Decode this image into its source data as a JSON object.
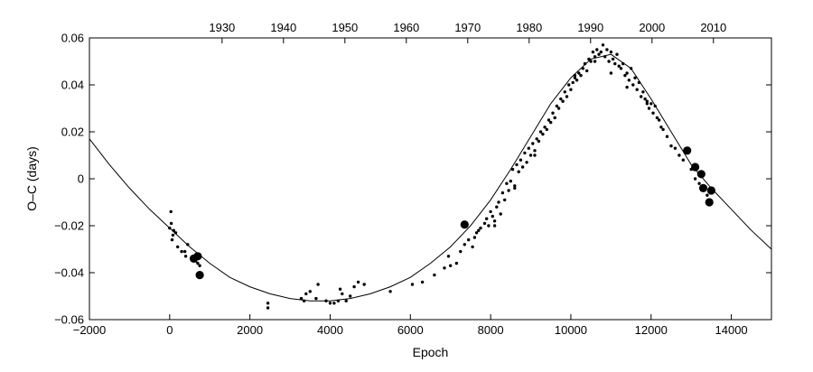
{
  "chart_data": {
    "type": "scatter",
    "title": "",
    "xlabel": "Epoch",
    "ylabel": "O–C (days)",
    "xlim": [
      -2000,
      15000
    ],
    "ylim": [
      -0.06,
      0.06
    ],
    "x_ticks": [
      -2000,
      0,
      2000,
      4000,
      6000,
      8000,
      10000,
      12000,
      14000
    ],
    "x_tick_labels": [
      "−2000",
      "0",
      "2000",
      "4000",
      "6000",
      "8000",
      "10000",
      "12000",
      "14000"
    ],
    "y_ticks": [
      -0.06,
      -0.04,
      -0.02,
      0,
      0.02,
      0.04,
      0.06
    ],
    "y_tick_labels": [
      "−0.06",
      "−0.04",
      "−0.02",
      "0",
      "0.02",
      "0.04",
      "0.06"
    ],
    "top_axis": {
      "label": "",
      "ticks": [
        1930,
        1940,
        1950,
        1960,
        1970,
        1980,
        1990,
        2000,
        2010
      ],
      "tick_labels": [
        "1930",
        "1940",
        "1950",
        "1960",
        "1970",
        "1980",
        "1990",
        "2000",
        "2010"
      ],
      "epoch_at": [
        1306,
        2837,
        4368,
        5899,
        7430,
        8961,
        10492,
        12023,
        13554
      ]
    },
    "grid": false,
    "legend": "none",
    "colors": {
      "points": "#000000",
      "curve": "#000000",
      "axes": "#000000"
    },
    "series": [
      {
        "kind": "points-small",
        "x": [
          0,
          30,
          40,
          60,
          80,
          100,
          150,
          200,
          300,
          380,
          400,
          450,
          540,
          600,
          650,
          700,
          750,
          2450,
          2450,
          3280,
          3350,
          3400,
          3500,
          3650,
          3700,
          3900,
          4000,
          4100,
          4200,
          4250,
          4300,
          4400,
          4500,
          4600,
          4700,
          4850,
          5500,
          6050,
          6300,
          6600,
          6850,
          6950,
          7000,
          7150,
          7250,
          7350,
          7450,
          7600,
          7650,
          7700,
          7750,
          7850,
          7900,
          7950,
          8000,
          8050,
          8100,
          8150,
          8200,
          8250,
          8300,
          8350,
          8400,
          8450,
          8500,
          8550,
          8600,
          8650,
          8700,
          8750,
          8800,
          8850,
          8900,
          8950,
          9000,
          9050,
          9100,
          9150,
          9200,
          9250,
          9300,
          9350,
          9400,
          9450,
          9500,
          9550,
          9600,
          9650,
          9700,
          9750,
          9800,
          9850,
          9900,
          9950,
          10000,
          10050,
          10100,
          10150,
          10200,
          10250,
          10300,
          10350,
          10400,
          10450,
          10500,
          10550,
          10600,
          10650,
          10700,
          10750,
          10800,
          10850,
          10900,
          10950,
          11000,
          11050,
          11100,
          11150,
          11200,
          11250,
          11300,
          11350,
          11400,
          11450,
          11500,
          11550,
          11600,
          11650,
          11700,
          11750,
          11800,
          11850,
          11900,
          11950,
          12000,
          12050,
          12100,
          12150,
          12200,
          12250,
          12300,
          12400,
          12500,
          12600,
          12700,
          12800,
          12900,
          13000,
          13100,
          13200,
          13300,
          13400,
          13500,
          7550,
          8100,
          8600,
          9100,
          9600,
          10100,
          10600,
          11000,
          11400,
          11900
        ],
        "y": [
          -0.021,
          -0.014,
          -0.019,
          -0.026,
          -0.024,
          -0.022,
          -0.023,
          -0.029,
          -0.031,
          -0.031,
          -0.033,
          -0.028,
          -0.034,
          -0.033,
          -0.035,
          -0.036,
          -0.037,
          -0.055,
          -0.053,
          -0.051,
          -0.052,
          -0.049,
          -0.048,
          -0.051,
          -0.045,
          -0.052,
          -0.053,
          -0.053,
          -0.052,
          -0.047,
          -0.049,
          -0.052,
          -0.05,
          -0.046,
          -0.044,
          -0.045,
          -0.048,
          -0.045,
          -0.044,
          -0.041,
          -0.038,
          -0.033,
          -0.037,
          -0.036,
          -0.031,
          -0.028,
          -0.026,
          -0.025,
          -0.023,
          -0.022,
          -0.021,
          -0.019,
          -0.017,
          -0.02,
          -0.014,
          -0.016,
          -0.018,
          -0.012,
          -0.01,
          -0.015,
          -0.006,
          -0.009,
          -0.002,
          -0.005,
          -0.001,
          0.004,
          -0.003,
          0.006,
          0.003,
          0.008,
          0.005,
          0.011,
          0.007,
          0.013,
          0.01,
          0.015,
          0.012,
          0.017,
          0.016,
          0.02,
          0.019,
          0.022,
          0.021,
          0.025,
          0.024,
          0.028,
          0.026,
          0.031,
          0.03,
          0.034,
          0.033,
          0.037,
          0.035,
          0.04,
          0.038,
          0.041,
          0.043,
          0.042,
          0.045,
          0.044,
          0.047,
          0.049,
          0.046,
          0.051,
          0.05,
          0.054,
          0.052,
          0.055,
          0.053,
          0.054,
          0.057,
          0.052,
          0.055,
          0.05,
          0.054,
          0.051,
          0.049,
          0.053,
          0.048,
          0.047,
          0.049,
          0.044,
          0.045,
          0.042,
          0.047,
          0.04,
          0.043,
          0.038,
          0.041,
          0.035,
          0.037,
          0.034,
          0.033,
          0.03,
          0.032,
          0.028,
          0.031,
          0.026,
          0.025,
          0.022,
          0.021,
          0.018,
          0.014,
          0.013,
          0.01,
          0.008,
          0.012,
          0.004,
          0.0,
          -0.002,
          -0.004,
          -0.007,
          -0.01,
          -0.029,
          -0.02,
          -0.004,
          0.01,
          0.026,
          0.044,
          0.05,
          0.045,
          0.039,
          0.032
        ]
      },
      {
        "kind": "points-large",
        "x": [
          600,
          700,
          750,
          7350,
          12900,
          13100,
          13250,
          13300,
          13450,
          13500
        ],
        "y": [
          -0.034,
          -0.033,
          -0.041,
          -0.0195,
          0.012,
          0.005,
          0.002,
          -0.004,
          -0.01,
          -0.005
        ]
      },
      {
        "kind": "fit-curve",
        "x": [
          -2000,
          -1500,
          -1000,
          -500,
          0,
          500,
          1000,
          1500,
          2000,
          2500,
          3000,
          3500,
          4000,
          4500,
          5000,
          5500,
          6000,
          6500,
          7000,
          7500,
          8000,
          8500,
          9000,
          9500,
          10000,
          10500,
          11000,
          11500,
          12000,
          12500,
          13000,
          13500,
          14000,
          14500,
          15000
        ],
        "y": [
          0.017,
          0.006,
          -0.004,
          -0.013,
          -0.021,
          -0.029,
          -0.036,
          -0.042,
          -0.046,
          -0.049,
          -0.051,
          -0.052,
          -0.052,
          -0.051,
          -0.049,
          -0.046,
          -0.042,
          -0.036,
          -0.029,
          -0.02,
          -0.009,
          0.004,
          0.018,
          0.032,
          0.043,
          0.051,
          0.053,
          0.047,
          0.034,
          0.02,
          0.006,
          -0.004,
          -0.013,
          -0.022,
          -0.03
        ]
      }
    ]
  }
}
